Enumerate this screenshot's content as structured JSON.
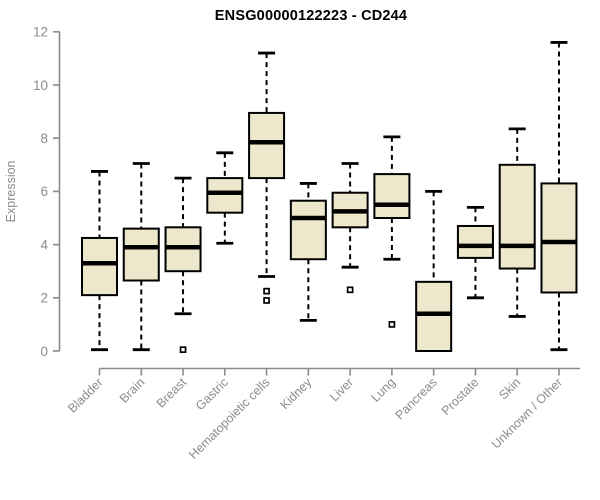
{
  "title": "ENSG00000122223 - CD244",
  "chart_data": {
    "type": "boxplot",
    "title": "ENSG00000122223 - CD244",
    "xlabel": "",
    "ylabel": "Expression",
    "ylim": [
      0,
      12
    ],
    "yticks": [
      0,
      2,
      4,
      6,
      8,
      10,
      12
    ],
    "grid": false,
    "legend": false,
    "categories": [
      "Bladder",
      "Brain",
      "Breast",
      "Gastric",
      "Hematopoietic cells",
      "Kidney",
      "Liver",
      "Lung",
      "Pancreas",
      "Prostate",
      "Skin",
      "Unknown / Other"
    ],
    "series": [
      {
        "name": "Bladder",
        "low": 0.05,
        "q1": 2.1,
        "median": 3.3,
        "q3": 4.25,
        "high": 6.75,
        "outliers": []
      },
      {
        "name": "Brain",
        "low": 0.05,
        "q1": 2.65,
        "median": 3.9,
        "q3": 4.6,
        "high": 7.05,
        "outliers": []
      },
      {
        "name": "Breast",
        "low": 1.4,
        "q1": 3.0,
        "median": 3.9,
        "q3": 4.65,
        "high": 6.5,
        "outliers": [
          0.05
        ]
      },
      {
        "name": "Gastric",
        "low": 4.05,
        "q1": 5.2,
        "median": 5.95,
        "q3": 6.5,
        "high": 7.45,
        "outliers": []
      },
      {
        "name": "Hematopoietic cells",
        "low": 2.8,
        "q1": 6.5,
        "median": 7.85,
        "q3": 8.95,
        "high": 11.2,
        "outliers": [
          2.25,
          1.9
        ]
      },
      {
        "name": "Kidney",
        "low": 1.15,
        "q1": 3.45,
        "median": 5.0,
        "q3": 5.65,
        "high": 6.3,
        "outliers": []
      },
      {
        "name": "Liver",
        "low": 3.15,
        "q1": 4.65,
        "median": 5.25,
        "q3": 5.95,
        "high": 7.05,
        "outliers": [
          2.3
        ]
      },
      {
        "name": "Lung",
        "low": 3.45,
        "q1": 5.0,
        "median": 5.5,
        "q3": 6.65,
        "high": 8.05,
        "outliers": [
          1.0
        ]
      },
      {
        "name": "Pancreas",
        "low": 0.0,
        "q1": 0.0,
        "median": 1.4,
        "q3": 2.6,
        "high": 6.0,
        "outliers": []
      },
      {
        "name": "Prostate",
        "low": 2.0,
        "q1": 3.5,
        "median": 3.95,
        "q3": 4.7,
        "high": 5.4,
        "outliers": []
      },
      {
        "name": "Skin",
        "low": 1.3,
        "q1": 3.1,
        "median": 3.95,
        "q3": 7.0,
        "high": 8.35,
        "outliers": []
      },
      {
        "name": "Unknown / Other",
        "low": 0.05,
        "q1": 2.2,
        "median": 4.1,
        "q3": 6.3,
        "high": 11.6,
        "outliers": []
      }
    ],
    "colors": {
      "box_fill": "#EDE8CC",
      "box_border": "#000000",
      "median": "#000000",
      "whisker": "#000000",
      "axis": "#8C8C8C",
      "axis_text": "#8C8C8C",
      "title_text": "#000000",
      "background": "#FFFFFF"
    }
  }
}
